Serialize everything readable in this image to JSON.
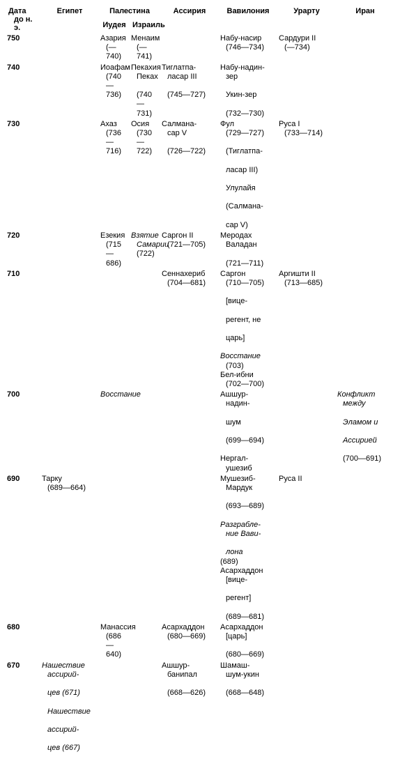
{
  "headers": {
    "date": "Дата\nдо н. э.",
    "egypt": "Египет",
    "palestine": "Палестина",
    "judea": "Иудея",
    "israel": "Израиль",
    "assyria": "Ассирия",
    "babylonia": "Вавилония",
    "urartu": "Урарту",
    "iran": "Иран"
  },
  "rows": {
    "750": {
      "date": "750",
      "judea": "Азария\n(—740)",
      "israel": "Менаим\n(—741)",
      "babylonia": "Набу-насир\n(746—734)",
      "urartu": "Сардури II\n(—734)"
    },
    "740": {
      "date": "740",
      "judea": "Иоафам\n(740—736)",
      "israel": "Пекахия\nПеках\n(740—731)",
      "assyria": "Тиглатпа-\nласар III\n(745—727)",
      "babylonia": "Набу-надин-\nзер\nУкин-зер\n(732—730)"
    },
    "730": {
      "date": "730",
      "judea": "Ахаз\n(736—716)",
      "israel": "Осия\n(730—722)",
      "assyria": "Салмана-\nсар V\n(726—722)",
      "babylonia": "Фул\n(729—727)\n(Тиглатпа-\nласар III)\nУлулайя\n(Салмана-\nсар V)",
      "urartu": "Руса I\n(733—714)"
    },
    "720": {
      "date": "720",
      "judea": "Езекия\n(715—686)",
      "israel_italic": "Взятие\nСамарии",
      "israel_date": "(722)",
      "assyria": "Саргон II\n(721—705)",
      "babylonia": "Меродах\nВаладан\n(721—711)"
    },
    "710": {
      "date": "710",
      "assyria": "Сеннахериб\n(704—681)",
      "babylonia_a": "Саргон\n(710—705)\n[вице-\nрегент, не\nцарь]",
      "babylonia_b_italic": "Восстание",
      "babylonia_b_date": "(703)",
      "babylonia_c": "Бел-ибни\n(702—700)",
      "urartu": "Аргишти II\n(713—685)"
    },
    "700": {
      "date": "700",
      "judea_italic": "Восстание",
      "babylonia_a": "Ашшур-\nнадин-\nшум\n(699—694)",
      "babylonia_b": "Нергал-\nушезиб",
      "iran_italic": "Конфликт\nмежду\nЭламом и\nАссирией",
      "iran_date": "(700—691)"
    },
    "690": {
      "date": "690",
      "egypt": "Тарку\n(689—664)",
      "babylonia_a": "Мушезиб-\nМардук\n(693—689)",
      "babylonia_b_italic": "Разграбле-\nние Вави-\nлона",
      "babylonia_b_date": "(689)",
      "babylonia_c": "Асархаддон\n[вице-\nрегент]\n(689—681)",
      "urartu": "Руса II"
    },
    "680": {
      "date": "680",
      "judea": "Манассия\n(686—640)",
      "assyria": "Асархаддон\n(680—669)",
      "babylonia": "Асархаддон\n[царь]\n(680—669)"
    },
    "670": {
      "date": "670",
      "egypt_italic": "Нашествие\nассирий-\nцев (671)\nНашествие\nассирий-\nцев (667)",
      "assyria": "Ашшур-\nбанипал\n(668—626)",
      "babylonia": "Шамаш-\nшум-укин\n(668—648)"
    }
  }
}
